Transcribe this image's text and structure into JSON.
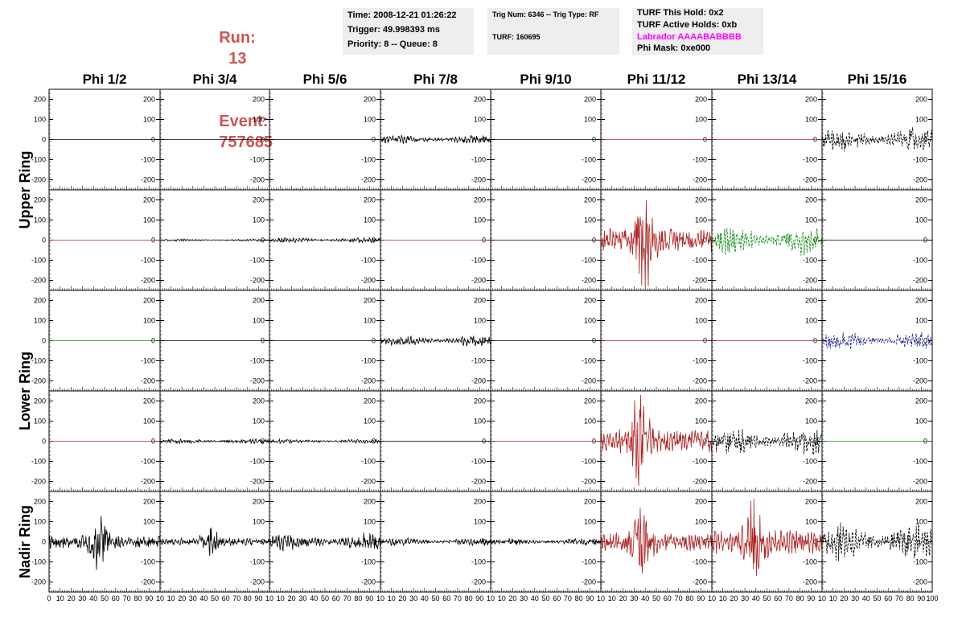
{
  "header": {
    "run_label": "Run:",
    "run_value": "13",
    "event_label": "Event:",
    "event_value": "757685",
    "time": "Time: 2008-12-21 01:26:22",
    "trigger": "Trigger: 49.998393 ms",
    "priority": "Priority: 8 -- Queue: 8",
    "trig_num": "Trig Num: 6346 -- Trig Type: RF",
    "turf": "TURF: 160695",
    "turf_this_hold": "TURF This Hold: 0x2",
    "turf_active_holds": "TURF Active Holds: 0xb",
    "labrador": "Labrador AAAABABBBB",
    "phi_mask": "Phi Mask: 0xe000"
  },
  "colors": {
    "run_text": "#cc5555",
    "labrador_text": "#ff00ff",
    "black": "#000000",
    "red": "#aa2222",
    "green": "#118811",
    "blue": "#1a1a88"
  },
  "chart_data": {
    "type": "line",
    "columns": [
      "Phi 1/2",
      "Phi 3/4",
      "Phi 5/6",
      "Phi 7/8",
      "Phi 9/10",
      "Phi 11/12",
      "Phi 13/14",
      "Phi 15/16"
    ],
    "rows": [
      "Upper Ring",
      "Upper Ring",
      "Lower Ring",
      "Lower Ring",
      "Nadir Ring"
    ],
    "row_labels": [
      {
        "text": "Upper Ring",
        "spans": [
          0,
          1
        ]
      },
      {
        "text": "Lower Ring",
        "spans": [
          2,
          3
        ]
      },
      {
        "text": "Nadir Ring",
        "spans": [
          4,
          4
        ]
      }
    ],
    "ylim": [
      -250,
      250
    ],
    "yticks": [
      -200,
      -100,
      0,
      100,
      200
    ],
    "xlim": [
      0,
      100
    ],
    "xticks": [
      0,
      10,
      20,
      30,
      40,
      50,
      60,
      70,
      80,
      90,
      100
    ],
    "x_tick_labels_first": [
      "0",
      "10",
      "20",
      "30",
      "40",
      "50",
      "60",
      "70",
      "80",
      "90",
      "10"
    ],
    "x_tick_labels_other": [
      "10",
      "20",
      "30",
      "40",
      "50",
      "60",
      "70",
      "80",
      "90",
      "10"
    ],
    "x_tick_labels_last": [
      "10",
      "20",
      "30",
      "40",
      "50",
      "60",
      "70",
      "80",
      "90",
      "100"
    ],
    "panels": [
      [
        {
          "color": "black",
          "amp": 0,
          "dashed": false
        },
        {
          "color": "black",
          "amp": 0,
          "dashed": false
        },
        {
          "color": "black",
          "amp": 0,
          "dashed": false
        },
        {
          "color": "black",
          "amp": 28,
          "dashed": false
        },
        {
          "color": "black",
          "amp": 0,
          "dashed": false
        },
        {
          "color": "red",
          "amp": 0,
          "dashed": false
        },
        {
          "color": "red",
          "amp": 0,
          "dashed": false
        },
        {
          "color": "black",
          "amp": 80,
          "dashed": true
        }
      ],
      [
        {
          "color": "red",
          "amp": 0,
          "dashed": false
        },
        {
          "color": "black",
          "amp": 8,
          "dashed": false
        },
        {
          "color": "black",
          "amp": 18,
          "dashed": false
        },
        {
          "color": "red",
          "amp": 0,
          "dashed": false
        },
        {
          "color": "black",
          "amp": 0,
          "dashed": false
        },
        {
          "color": "red",
          "amp": 240,
          "dashed": false,
          "burst_at": 40
        },
        {
          "color": "green",
          "amp": 100,
          "dashed": true
        },
        {
          "color": "black",
          "amp": 0,
          "dashed": false
        }
      ],
      [
        {
          "color": "green",
          "amp": 0,
          "dashed": false
        },
        {
          "color": "black",
          "amp": 0,
          "dashed": false
        },
        {
          "color": "black",
          "amp": 0,
          "dashed": false
        },
        {
          "color": "black",
          "amp": 35,
          "dashed": false
        },
        {
          "color": "black",
          "amp": 0,
          "dashed": false
        },
        {
          "color": "red",
          "amp": 0,
          "dashed": false
        },
        {
          "color": "red",
          "amp": 0,
          "dashed": false
        },
        {
          "color": "blue",
          "amp": 60,
          "dashed": true
        }
      ],
      [
        {
          "color": "red",
          "amp": 0,
          "dashed": false
        },
        {
          "color": "black",
          "amp": 18,
          "dashed": false
        },
        {
          "color": "black",
          "amp": 15,
          "dashed": false
        },
        {
          "color": "black",
          "amp": 0,
          "dashed": false
        },
        {
          "color": "red",
          "amp": 0,
          "dashed": false
        },
        {
          "color": "red",
          "amp": 240,
          "dashed": false,
          "burst_at": 35
        },
        {
          "color": "black",
          "amp": 90,
          "dashed": true
        },
        {
          "color": "green",
          "amp": 0,
          "dashed": false
        }
      ],
      [
        {
          "color": "black",
          "amp": 150,
          "dashed": false,
          "burst_at": 45
        },
        {
          "color": "black",
          "amp": 80,
          "dashed": false,
          "burst_at": 45
        },
        {
          "color": "black",
          "amp": 60,
          "dashed": false
        },
        {
          "color": "black",
          "amp": 25,
          "dashed": false
        },
        {
          "color": "black",
          "amp": 22,
          "dashed": false
        },
        {
          "color": "red",
          "amp": 200,
          "dashed": false,
          "burst_at": 38
        },
        {
          "color": "red",
          "amp": 250,
          "dashed": false,
          "burst_at": 40
        },
        {
          "color": "black",
          "amp": 120,
          "dashed": true
        }
      ]
    ]
  }
}
